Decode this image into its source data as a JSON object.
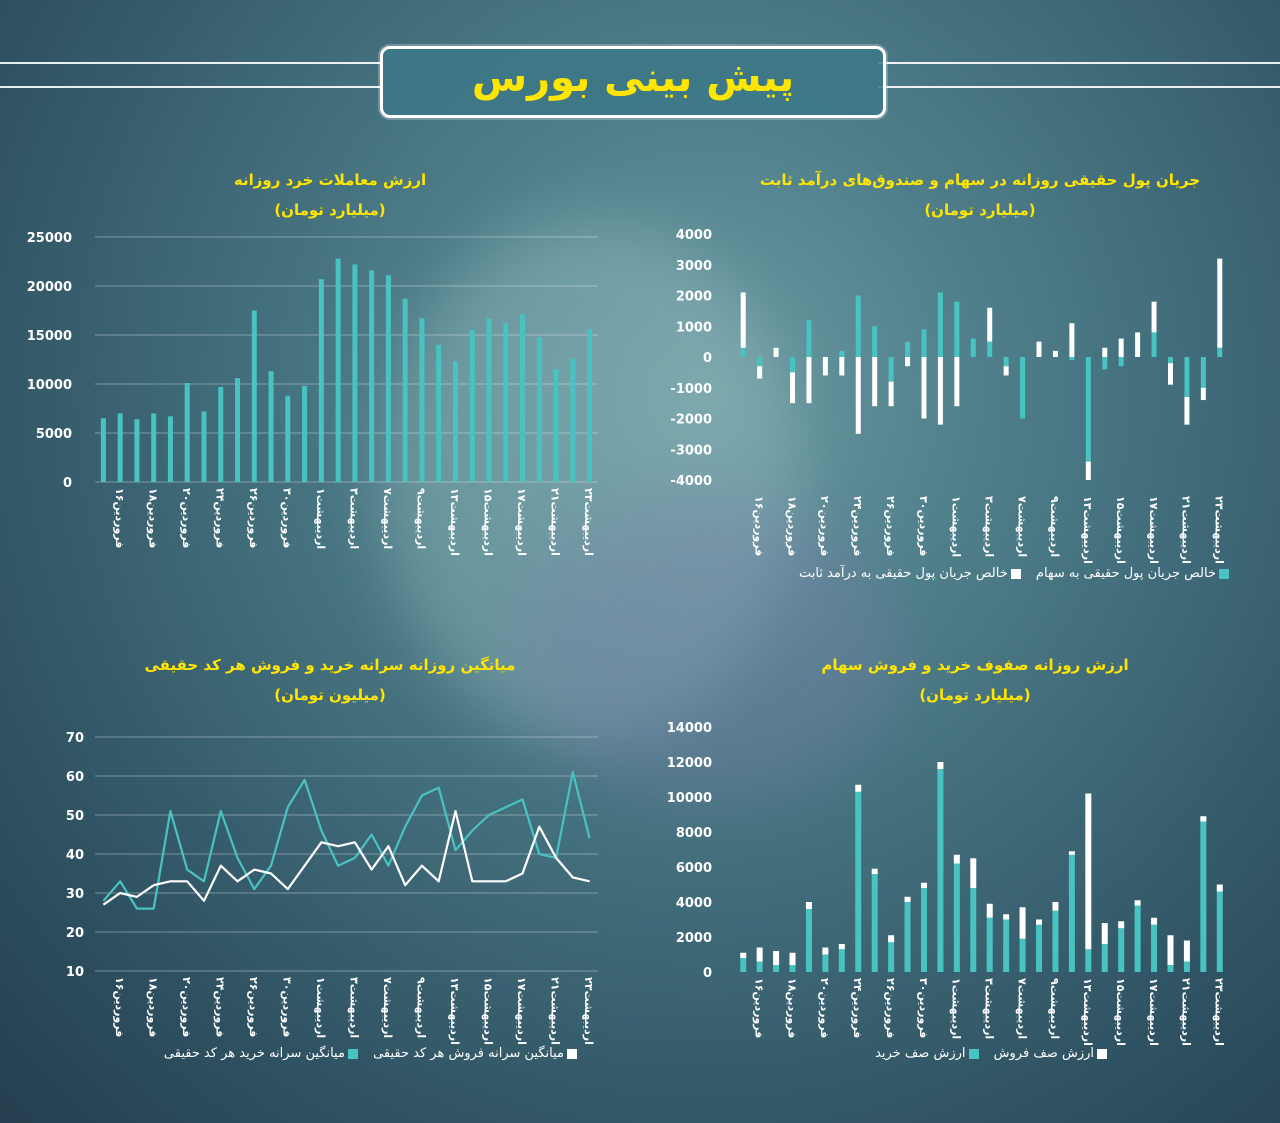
{
  "page_title": "پیش بینی بورس",
  "colors": {
    "teal": "#49c2c2",
    "white": "#ffffff",
    "title": "#ffe600"
  },
  "dates_short": [
    "فروردین۱۶",
    "فروردین۱۸",
    "فروردین۲۰",
    "فروردین۲۴",
    "فروردین۲۶",
    "فروردین۳۰",
    "اردیبهشت۱",
    "اردیبهشت۳",
    "اردیبهشت۷",
    "اردیبهشت۹",
    "اردیبهشت۱۳",
    "اردیبهشت۱۵",
    "اردیبهشت۱۷",
    "اردیبهشت۲۱",
    "اردیبهشت۲۳"
  ],
  "chart_data": [
    {
      "id": "retail",
      "type": "bar",
      "title": "ارزش معاملات خرد روزانه",
      "subtitle": "(میلیارد تومان)",
      "ylim": [
        0,
        25000
      ],
      "yticks": [
        "0",
        "5000",
        "10000",
        "15000",
        "20000",
        "25000"
      ],
      "grid": true,
      "series": [
        {
          "values": [
            6500,
            7000,
            6400,
            7000,
            6700,
            10100,
            7200,
            9700,
            10600,
            17500,
            11300,
            8800,
            9800,
            20700,
            22800,
            22200,
            21600,
            21100,
            18700,
            16700,
            14000,
            12300,
            15500,
            16700,
            16200,
            17100,
            14800,
            11500,
            12600,
            15600
          ]
        }
      ]
    },
    {
      "id": "flow",
      "type": "bar",
      "title": "جریان پول حقیقی روزانه در سهام و صندوق‌های درآمد ثابت",
      "subtitle": "(میلیارد تومان)",
      "ylim": [
        -4000,
        4000
      ],
      "yticks": [
        "-4000",
        "-3000",
        "-2000",
        "-1000",
        "0",
        "1000",
        "2000",
        "3000",
        "4000"
      ],
      "legend_position": "bottom",
      "series": [
        {
          "name": "خالص جریان پول حقیقی به سهام",
          "values": [
            300,
            -300,
            0,
            -500,
            1200,
            0,
            200,
            2000,
            1000,
            -800,
            500,
            900,
            2100,
            1800,
            600,
            500,
            -300,
            -2000,
            0,
            0,
            -100,
            -3400,
            -400,
            -300,
            0,
            800,
            -200,
            -1300,
            -1000,
            300
          ]
        },
        {
          "name": "خالص جریان پول حقیقی به درآمد ثابت",
          "values": [
            1800,
            -400,
            300,
            -1000,
            -1500,
            -600,
            -600,
            -2500,
            -1600,
            -800,
            -300,
            -2000,
            -2200,
            -1600,
            0,
            1100,
            -300,
            0,
            500,
            200,
            1100,
            -600,
            300,
            600,
            800,
            1000,
            -700,
            -900,
            -400,
            2900
          ]
        }
      ]
    },
    {
      "id": "avg",
      "type": "line",
      "title": "میانگین روزانه سرانه خرید و فروش هر کد حقیقی",
      "subtitle": "(میلیون تومان)",
      "ylim": [
        10,
        70
      ],
      "yticks": [
        "10",
        "20",
        "30",
        "40",
        "50",
        "60",
        "70"
      ],
      "legend_position": "bottom",
      "series": [
        {
          "name": "میانگین سرانه خرید هر کد حقیقی",
          "values": [
            28,
            33,
            26,
            26,
            51,
            36,
            33,
            51,
            39,
            31,
            37,
            52,
            59,
            46,
            37,
            39,
            45,
            37,
            47,
            55,
            57,
            41,
            46,
            50,
            52,
            54,
            40,
            39,
            61,
            44
          ]
        },
        {
          "name": "میانگین سرانه فروش هر کد حقیقی",
          "values": [
            27,
            30,
            29,
            32,
            33,
            33,
            28,
            37,
            33,
            36,
            35,
            31,
            37,
            43,
            42,
            43,
            36,
            42,
            32,
            37,
            33,
            51,
            33,
            33,
            33,
            35,
            47,
            39,
            34,
            33
          ]
        }
      ]
    },
    {
      "id": "queues",
      "type": "bar",
      "title": "ارزش روزانه صفوف خرید و فروش سهام",
      "subtitle": "(میلیارد تومان)",
      "ylim": [
        0,
        14000
      ],
      "yticks": [
        "0",
        "2000",
        "4000",
        "6000",
        "8000",
        "10000",
        "12000",
        "14000"
      ],
      "legend_position": "bottom",
      "series": [
        {
          "name": "ارزش صف خرید",
          "values": [
            800,
            600,
            400,
            400,
            3600,
            1000,
            1300,
            10300,
            5600,
            1700,
            4000,
            4800,
            11600,
            6200,
            4800,
            3100,
            3000,
            1900,
            2700,
            3500,
            6700,
            1300,
            1600,
            2500,
            3800,
            2700,
            400,
            600,
            8600,
            4600
          ]
        },
        {
          "name": "ارزش صف فروش",
          "values": [
            300,
            800,
            800,
            700,
            400,
            400,
            300,
            400,
            300,
            400,
            300,
            300,
            400,
            500,
            1700,
            800,
            300,
            1800,
            300,
            500,
            200,
            8900,
            1200,
            400,
            300,
            400,
            1700,
            1200,
            300,
            400
          ]
        }
      ]
    }
  ]
}
